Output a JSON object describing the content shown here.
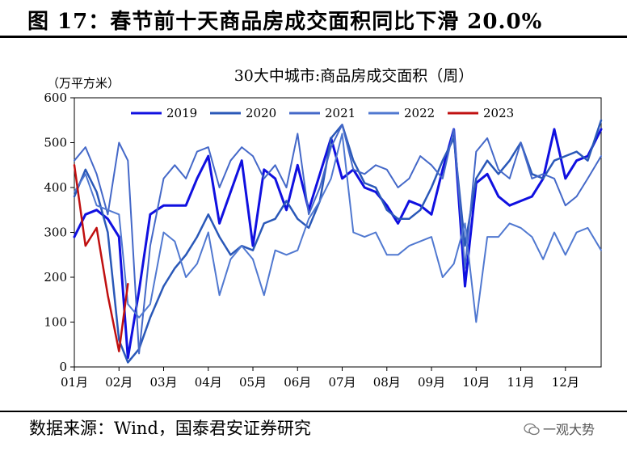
{
  "header": {
    "title": "图 17：春节前十天商品房成交面积同比下滑 20.0%"
  },
  "footer": {
    "source": "数据来源：Wind，国泰君安证券研究",
    "watermark": "一观大势"
  },
  "chart_data": {
    "type": "line",
    "title": "30大中城市:商品房成交面积（周）",
    "ylabel": "（万平方米）",
    "ylim": [
      0,
      600
    ],
    "yticks": [
      0,
      100,
      200,
      300,
      400,
      500,
      600
    ],
    "xlim": [
      1,
      12.8
    ],
    "x_tick_labels": [
      "01月",
      "02月",
      "03月",
      "04月",
      "05月",
      "06月",
      "07月",
      "08月",
      "09月",
      "10月",
      "11月",
      "12月"
    ],
    "legend_position": "top",
    "series": [
      {
        "name": "2019",
        "color": "#1010e0",
        "width": 3,
        "x": [
          1.0,
          1.25,
          1.5,
          1.75,
          2.0,
          2.2,
          2.45,
          2.7,
          3.0,
          3.25,
          3.5,
          3.75,
          4.0,
          4.25,
          4.5,
          4.75,
          5.0,
          5.25,
          5.5,
          5.75,
          6.0,
          6.25,
          6.5,
          6.75,
          7.0,
          7.25,
          7.5,
          7.75,
          8.0,
          8.25,
          8.5,
          8.75,
          9.0,
          9.25,
          9.5,
          9.75,
          10.0,
          10.25,
          10.5,
          10.75,
          11.0,
          11.25,
          11.5,
          11.75,
          12.0,
          12.25,
          12.5,
          12.8
        ],
        "values": [
          290,
          340,
          350,
          330,
          290,
          20,
          170,
          340,
          360,
          360,
          360,
          420,
          470,
          320,
          390,
          460,
          270,
          440,
          420,
          350,
          450,
          350,
          430,
          510,
          420,
          440,
          400,
          390,
          360,
          320,
          370,
          360,
          340,
          440,
          530,
          180,
          410,
          430,
          380,
          360,
          370,
          380,
          420,
          530,
          420,
          460,
          470,
          530
        ]
      },
      {
        "name": "2020",
        "color": "#2a58b8",
        "width": 2.5,
        "x": [
          1.0,
          1.25,
          1.5,
          1.75,
          2.0,
          2.2,
          2.45,
          2.7,
          3.0,
          3.25,
          3.5,
          3.75,
          4.0,
          4.25,
          4.5,
          4.75,
          5.0,
          5.25,
          5.5,
          5.75,
          6.0,
          6.25,
          6.5,
          6.75,
          7.0,
          7.25,
          7.5,
          7.75,
          8.0,
          8.25,
          8.5,
          8.75,
          9.0,
          9.25,
          9.5,
          9.75,
          10.0,
          10.25,
          10.5,
          10.75,
          11.0,
          11.25,
          11.5,
          11.75,
          12.0,
          12.25,
          12.5,
          12.8
        ],
        "values": [
          380,
          440,
          390,
          300,
          60,
          10,
          40,
          110,
          180,
          220,
          250,
          290,
          340,
          290,
          250,
          270,
          260,
          320,
          330,
          370,
          330,
          310,
          370,
          510,
          540,
          460,
          410,
          400,
          350,
          330,
          330,
          350,
          400,
          460,
          510,
          270,
          420,
          460,
          430,
          460,
          500,
          430,
          420,
          460,
          470,
          480,
          460,
          550
        ]
      },
      {
        "name": "2021",
        "color": "#4468c8",
        "width": 2,
        "x": [
          1.0,
          1.25,
          1.5,
          1.75,
          2.0,
          2.2,
          2.45,
          2.7,
          3.0,
          3.25,
          3.5,
          3.75,
          4.0,
          4.25,
          4.5,
          4.75,
          5.0,
          5.25,
          5.5,
          5.75,
          6.0,
          6.25,
          6.5,
          6.75,
          7.0,
          7.25,
          7.5,
          7.75,
          8.0,
          8.25,
          8.5,
          8.75,
          9.0,
          9.25,
          9.5,
          9.75,
          10.0,
          10.25,
          10.5,
          10.75,
          11.0,
          11.25,
          11.5,
          11.75,
          12.0,
          12.25,
          12.5,
          12.8
        ],
        "values": [
          460,
          490,
          430,
          340,
          500,
          460,
          30,
          270,
          420,
          450,
          420,
          480,
          490,
          400,
          460,
          490,
          470,
          420,
          450,
          400,
          520,
          340,
          400,
          490,
          540,
          440,
          430,
          450,
          440,
          400,
          420,
          470,
          450,
          420,
          530,
          220,
          480,
          510,
          440,
          420,
          500,
          420,
          430,
          420,
          360,
          380,
          420,
          470
        ]
      },
      {
        "name": "2022",
        "color": "#5078d0",
        "width": 2,
        "x": [
          1.0,
          1.25,
          1.5,
          1.75,
          2.0,
          2.2,
          2.45,
          2.7,
          3.0,
          3.25,
          3.5,
          3.75,
          4.0,
          4.25,
          4.5,
          4.75,
          5.0,
          5.25,
          5.5,
          5.75,
          6.0,
          6.25,
          6.5,
          6.75,
          7.0,
          7.25,
          7.5,
          7.75,
          8.0,
          8.25,
          8.5,
          8.75,
          9.0,
          9.25,
          9.5,
          9.75,
          10.0,
          10.25,
          10.5,
          10.75,
          11.0,
          11.25,
          11.5,
          11.75,
          12.0,
          12.25,
          12.5,
          12.8
        ],
        "values": [
          390,
          430,
          360,
          350,
          340,
          140,
          110,
          140,
          300,
          280,
          200,
          230,
          300,
          160,
          240,
          270,
          240,
          160,
          260,
          250,
          260,
          330,
          370,
          420,
          520,
          300,
          290,
          300,
          250,
          250,
          270,
          280,
          290,
          200,
          230,
          320,
          100,
          290,
          290,
          320,
          310,
          290,
          240,
          300,
          250,
          300,
          310,
          260
        ]
      },
      {
        "name": "2023",
        "color": "#c01010",
        "width": 2.5,
        "x": [
          1.0,
          1.25,
          1.5,
          1.75,
          2.0,
          2.2
        ],
        "values": [
          450,
          270,
          310,
          160,
          35,
          185
        ]
      }
    ]
  }
}
